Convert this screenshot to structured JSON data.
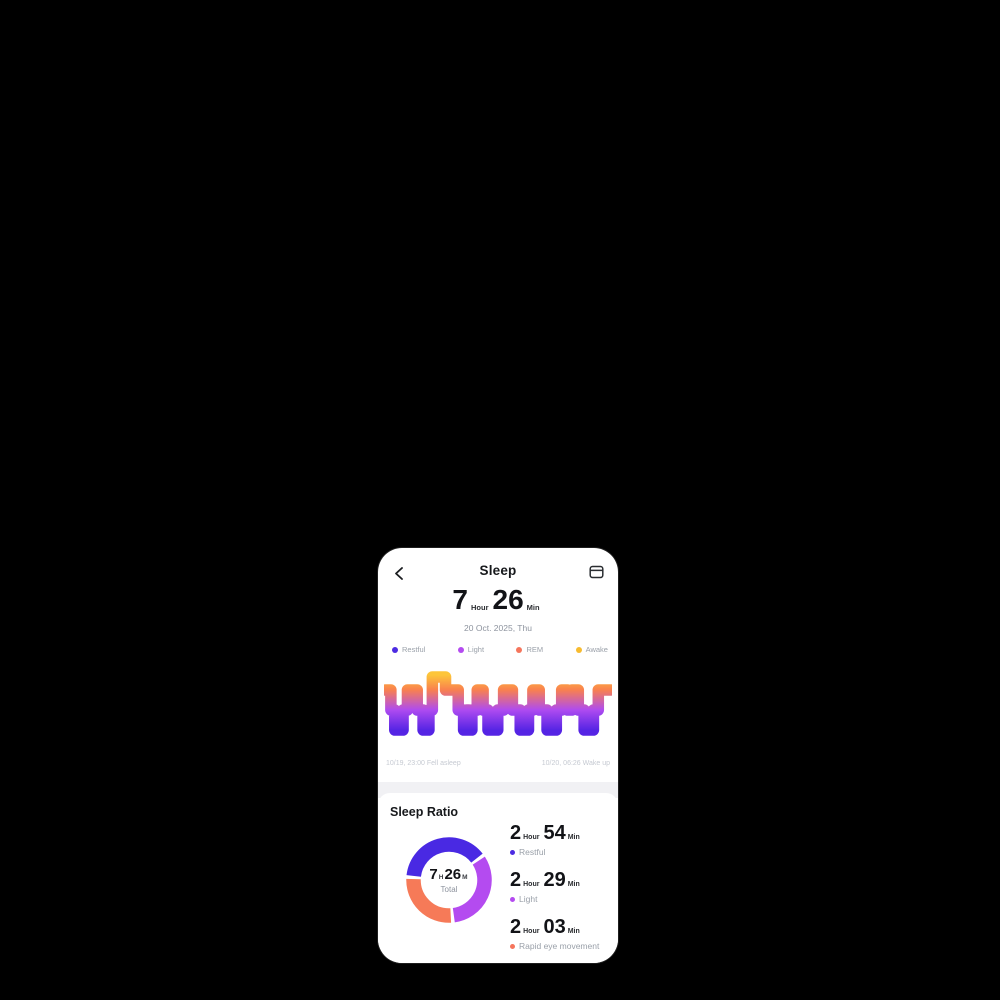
{
  "page": {
    "background": "#000000"
  },
  "header": {
    "title": "Sleep"
  },
  "summary": {
    "hours": "7",
    "hours_unit": "Hour",
    "minutes": "26",
    "minutes_unit": "Min",
    "date": "20 Oct. 2025, Thu"
  },
  "legend": {
    "items": [
      {
        "label": "Restful",
        "color": "#4c2be2"
      },
      {
        "label": "Light",
        "color": "#b44bf0"
      },
      {
        "label": "REM",
        "color": "#f5755c"
      },
      {
        "label": "Awake",
        "color": "#f7bb2f"
      }
    ]
  },
  "chart_footer": {
    "fell_asleep": "10/19, 23:00 Fell asleep",
    "wake_up": "10/20, 06:26 Wake up"
  },
  "ratio_section": {
    "title": "Sleep Ratio",
    "donut_center": {
      "hours": "7",
      "h_unit": "H",
      "minutes": "26",
      "m_unit": "M",
      "label": "Total"
    },
    "stats": [
      {
        "hours": "2",
        "hours_unit": "Hour",
        "minutes": "54",
        "minutes_unit": "Min",
        "label": "Restful",
        "color": "#4c2be2"
      },
      {
        "hours": "2",
        "hours_unit": "Hour",
        "minutes": "29",
        "minutes_unit": "Min",
        "label": "Light",
        "color": "#b44bf0"
      },
      {
        "hours": "2",
        "hours_unit": "Hour",
        "minutes": "03",
        "minutes_unit": "Min",
        "label": "Rapid eye movement",
        "color": "#f5755c"
      }
    ]
  },
  "chart_data": [
    {
      "type": "hypnogram-step",
      "title": "Sleep stages through the night",
      "x_range": [
        "10/19 23:00",
        "10/20 06:26"
      ],
      "stages": [
        "Awake",
        "REM",
        "Light",
        "Restful"
      ],
      "stage_levels": {
        "awake": 9,
        "rem": 22,
        "light": 42,
        "restful": 62
      },
      "colors": {
        "awake": "#fdc53a",
        "rem": "#f9814e",
        "light": "#ae4bf0",
        "restful": "#5524e4"
      },
      "segments": [
        {
          "stage": "rem",
          "w": 2.2
        },
        {
          "stage": "light",
          "w": 1.6
        },
        {
          "stage": "restful",
          "w": 3.4
        },
        {
          "stage": "light",
          "w": 1.8
        },
        {
          "stage": "rem",
          "w": 4.0
        },
        {
          "stage": "light",
          "w": 2.4
        },
        {
          "stage": "restful",
          "w": 2.4
        },
        {
          "stage": "light",
          "w": 1.4
        },
        {
          "stage": "awake",
          "w": 5.4
        },
        {
          "stage": "rem",
          "w": 5.2
        },
        {
          "stage": "light",
          "w": 2.2
        },
        {
          "stage": "restful",
          "w": 1.2
        },
        {
          "stage": "light",
          "w": 1.0
        },
        {
          "stage": "restful",
          "w": 1.2
        },
        {
          "stage": "light",
          "w": 2.2
        },
        {
          "stage": "rem",
          "w": 2.4
        },
        {
          "stage": "light",
          "w": 2.0
        },
        {
          "stage": "restful",
          "w": 4.0
        },
        {
          "stage": "light",
          "w": 2.4
        },
        {
          "stage": "rem",
          "w": 3.6
        },
        {
          "stage": "light",
          "w": 3.2
        },
        {
          "stage": "restful",
          "w": 3.4
        },
        {
          "stage": "light",
          "w": 1.8
        },
        {
          "stage": "rem",
          "w": 2.6
        },
        {
          "stage": "light",
          "w": 3.2
        },
        {
          "stage": "restful",
          "w": 3.8
        },
        {
          "stage": "light",
          "w": 2.2
        },
        {
          "stage": "rem",
          "w": 2.4
        },
        {
          "stage": "light",
          "w": 1.8
        },
        {
          "stage": "rem",
          "w": 2.6
        },
        {
          "stage": "light",
          "w": 2.4
        },
        {
          "stage": "restful",
          "w": 3.8
        },
        {
          "stage": "light",
          "w": 2.0
        },
        {
          "stage": "rem",
          "w": 5.0
        }
      ]
    },
    {
      "type": "donut",
      "title": "Sleep Ratio",
      "center_label": "7 H 26 M Total",
      "start_angle_deg": -86,
      "gap_deg": 5,
      "segments": [
        {
          "label": "Restful",
          "minutes": 174,
          "color": "#4929e3"
        },
        {
          "label": "Light",
          "minutes": 149,
          "color": "#b44bf0"
        },
        {
          "label": "REM",
          "minutes": 123,
          "color": "#f67a58"
        }
      ]
    }
  ]
}
